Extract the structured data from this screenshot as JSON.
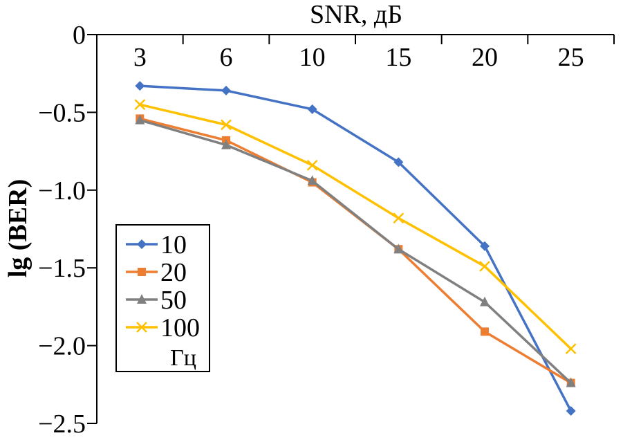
{
  "chart_data": {
    "type": "line",
    "title": "",
    "xlabel": "SNR, дБ",
    "ylabel": "lg (BER)",
    "categories": [
      "3",
      "6",
      "10",
      "15",
      "20",
      "25"
    ],
    "ylim": [
      -2.5,
      0
    ],
    "yticks": [
      0,
      -0.5,
      -1.0,
      -1.5,
      -2.0,
      -2.5
    ],
    "ytick_labels": [
      "0",
      "−0.5",
      "−1.0",
      "−1.5",
      "−2.0",
      "−2.5"
    ],
    "series": [
      {
        "name": "10",
        "marker": "diamond",
        "color": "#4472C4",
        "values": [
          -0.33,
          -0.36,
          -0.48,
          -0.82,
          -1.36,
          -2.42
        ]
      },
      {
        "name": "20",
        "marker": "square",
        "color": "#ED7D31",
        "values": [
          -0.54,
          -0.68,
          -0.95,
          -1.38,
          -1.91,
          -2.24
        ]
      },
      {
        "name": "50",
        "marker": "triangle",
        "color": "#808080",
        "values": [
          -0.55,
          -0.71,
          -0.94,
          -1.38,
          -1.72,
          -2.24
        ]
      },
      {
        "name": "100",
        "marker": "x",
        "color": "#FFC000",
        "values": [
          -0.45,
          -0.58,
          -0.84,
          -1.18,
          -1.49,
          -2.02
        ]
      }
    ],
    "legend_position": "left",
    "legend_unit": "Гц"
  }
}
